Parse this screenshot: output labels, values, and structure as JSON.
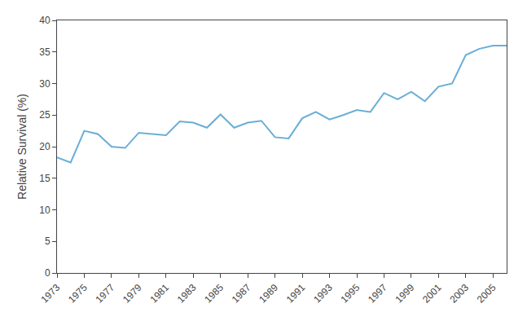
{
  "chart_data": {
    "type": "line",
    "x": [
      1973,
      1974,
      1975,
      1976,
      1977,
      1978,
      1979,
      1980,
      1981,
      1982,
      1983,
      1984,
      1985,
      1986,
      1987,
      1988,
      1989,
      1990,
      1991,
      1992,
      1993,
      1994,
      1995,
      1996,
      1997,
      1998,
      1999,
      2000,
      2001,
      2002,
      2003,
      2004,
      2005,
      2006
    ],
    "values": [
      18.3,
      17.5,
      22.5,
      22.0,
      20.0,
      19.8,
      22.2,
      22.0,
      21.8,
      24.0,
      23.8,
      23.0,
      25.1,
      23.0,
      23.8,
      24.1,
      21.5,
      21.3,
      24.5,
      25.5,
      24.3,
      25.0,
      25.8,
      25.5,
      28.5,
      27.5,
      28.7,
      27.2,
      29.5,
      30.0,
      34.5,
      35.5,
      36.0,
      36.0
    ],
    "color": "#6aaed6",
    "ylabel": "Relative Survival (%)",
    "xlim": [
      1973,
      2006
    ],
    "ylim": [
      0,
      40
    ],
    "xticks": [
      1973,
      1975,
      1977,
      1979,
      1981,
      1983,
      1985,
      1987,
      1989,
      1991,
      1993,
      1995,
      1997,
      1999,
      2001,
      2003,
      2005
    ],
    "yticks": [
      0,
      5,
      10,
      15,
      20,
      25,
      30,
      35,
      40
    ],
    "grid": false
  }
}
